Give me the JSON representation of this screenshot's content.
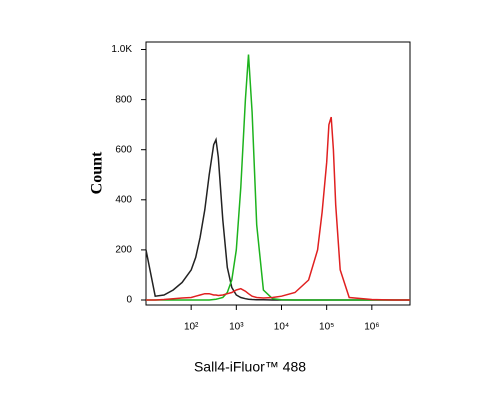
{
  "chart_data": {
    "type": "line",
    "xlabel": "Sall4-iFluor™ 488",
    "ylabel": "Count",
    "xscale": "log",
    "x": [
      10,
      16,
      25,
      40,
      63,
      100,
      126,
      158,
      200,
      251,
      316,
      355,
      398,
      501,
      631,
      794,
      1000,
      1259,
      1585,
      1862,
      2239,
      2818,
      3981,
      6310,
      10000,
      19953,
      39811,
      63096,
      79433,
      100000,
      112202,
      125893,
      141254,
      158489,
      199526,
      316228,
      1000000,
      3162278,
      7000000
    ],
    "series": [
      {
        "color": "#222222",
        "values": [
          200,
          15,
          20,
          40,
          70,
          120,
          170,
          250,
          360,
          500,
          620,
          640,
          570,
          320,
          130,
          50,
          20,
          10,
          5,
          3,
          2,
          1,
          1,
          0,
          0,
          0,
          0,
          0,
          0,
          0,
          0,
          0,
          0,
          0,
          0,
          0,
          0,
          0,
          0
        ]
      },
      {
        "color": "#1db31d",
        "values": [
          0,
          0,
          0,
          0,
          0,
          0,
          0,
          0,
          0,
          0,
          2,
          3,
          5,
          10,
          30,
          80,
          200,
          450,
          800,
          980,
          750,
          300,
          40,
          5,
          1,
          0,
          0,
          0,
          0,
          0,
          0,
          0,
          0,
          0,
          0,
          0,
          0,
          0,
          0
        ]
      },
      {
        "color": "#e02020",
        "values": [
          0,
          0,
          2,
          5,
          8,
          10,
          15,
          20,
          25,
          25,
          20,
          20,
          18,
          20,
          25,
          30,
          40,
          45,
          35,
          25,
          15,
          10,
          8,
          10,
          15,
          30,
          80,
          200,
          350,
          550,
          700,
          730,
          600,
          380,
          120,
          10,
          2,
          0,
          0
        ]
      }
    ],
    "xlim": [
      10,
      7000000
    ],
    "xticks": [
      {
        "value": 100,
        "label": "10²"
      },
      {
        "value": 1000,
        "label": "10³"
      },
      {
        "value": 10000,
        "label": "10⁴"
      },
      {
        "value": 100000,
        "label": "10⁵"
      },
      {
        "value": 1000000,
        "label": "10⁶"
      }
    ],
    "ylim": [
      -20,
      1030
    ],
    "yticks": [
      0,
      200,
      400,
      600,
      800,
      {
        "value": 1000,
        "label": "1.0K"
      }
    ]
  }
}
